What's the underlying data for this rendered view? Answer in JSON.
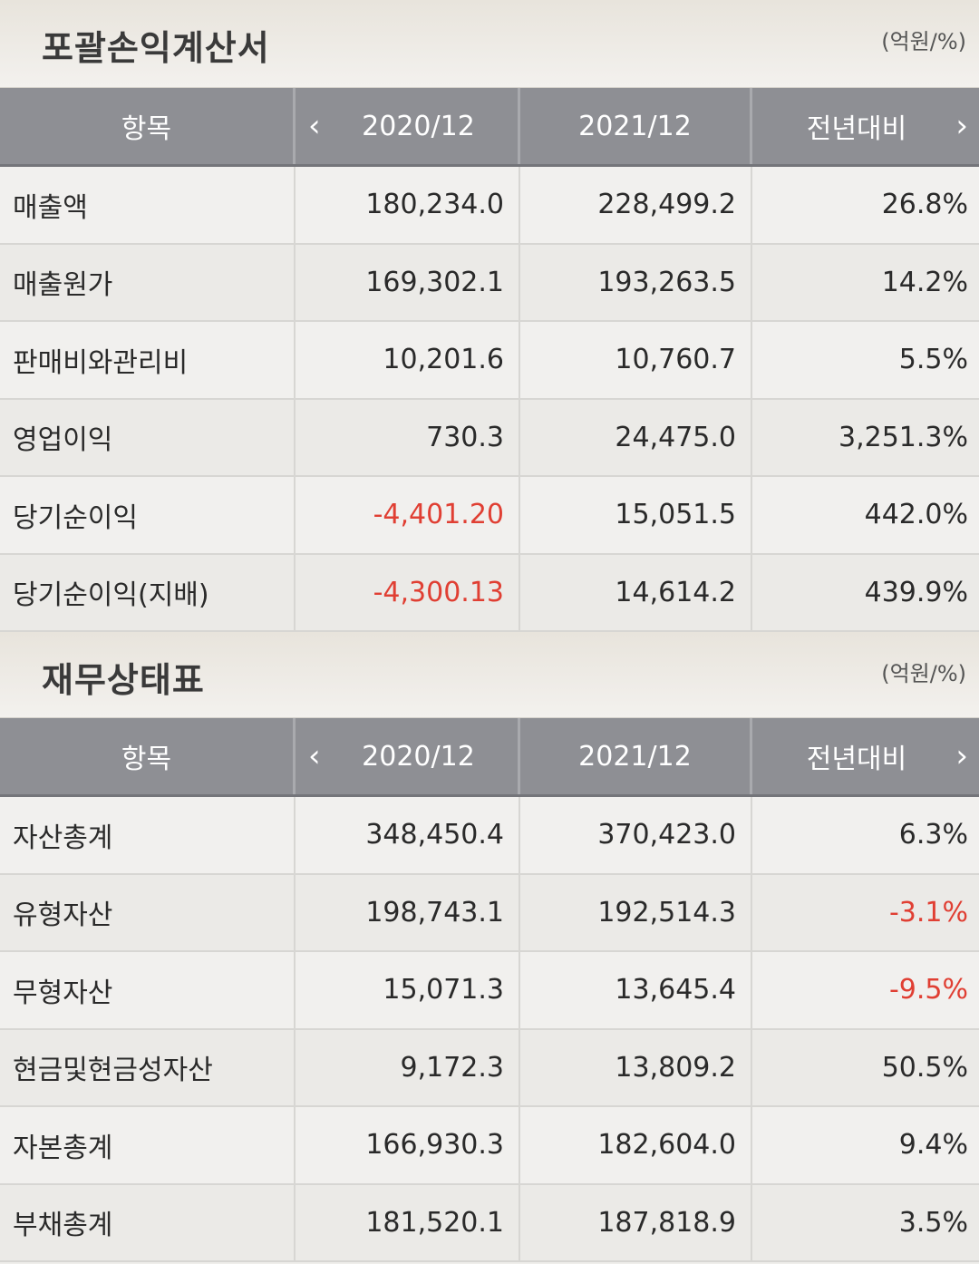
{
  "income": {
    "title": "포괄손익계산서",
    "unit": "(억원/%)",
    "header": {
      "item": "항목",
      "col1": "2020/12",
      "col2": "2021/12",
      "col3": "전년대비"
    },
    "rows": [
      {
        "label": "매출액",
        "v1": "180,234.0",
        "v2": "228,499.2",
        "v3": "26.8%"
      },
      {
        "label": "매출원가",
        "v1": "169,302.1",
        "v2": "193,263.5",
        "v3": "14.2%"
      },
      {
        "label": "판매비와관리비",
        "v1": "10,201.6",
        "v2": "10,760.7",
        "v3": "5.5%"
      },
      {
        "label": "영업이익",
        "v1": "730.3",
        "v2": "24,475.0",
        "v3": "3,251.3%"
      },
      {
        "label": "당기순이익",
        "v1": "-4,401.20",
        "v2": "15,051.5",
        "v3": "442.0%"
      },
      {
        "label": "당기순이익(지배)",
        "v1": "-4,300.13",
        "v2": "14,614.2",
        "v3": "439.9%"
      }
    ]
  },
  "balance": {
    "title": "재무상태표",
    "unit": "(억원/%)",
    "header": {
      "item": "항목",
      "col1": "2020/12",
      "col2": "2021/12",
      "col3": "전년대비"
    },
    "rows": [
      {
        "label": "자산총계",
        "v1": "348,450.4",
        "v2": "370,423.0",
        "v3": "6.3%"
      },
      {
        "label": "유형자산",
        "v1": "198,743.1",
        "v2": "192,514.3",
        "v3": "-3.1%"
      },
      {
        "label": "무형자산",
        "v1": "15,071.3",
        "v2": "13,645.4",
        "v3": "-9.5%"
      },
      {
        "label": "현금및현금성자산",
        "v1": "9,172.3",
        "v2": "13,809.2",
        "v3": "50.5%"
      },
      {
        "label": "자본총계",
        "v1": "166,930.3",
        "v2": "182,604.0",
        "v3": "9.4%"
      },
      {
        "label": "부채총계",
        "v1": "181,520.1",
        "v2": "187,818.9",
        "v3": "3.5%"
      }
    ]
  },
  "colors": {
    "negative": "#e03f33",
    "header_bg": "#8e8f94"
  },
  "icons": {
    "prev": "chevron-left-icon",
    "next": "chevron-right-icon"
  }
}
